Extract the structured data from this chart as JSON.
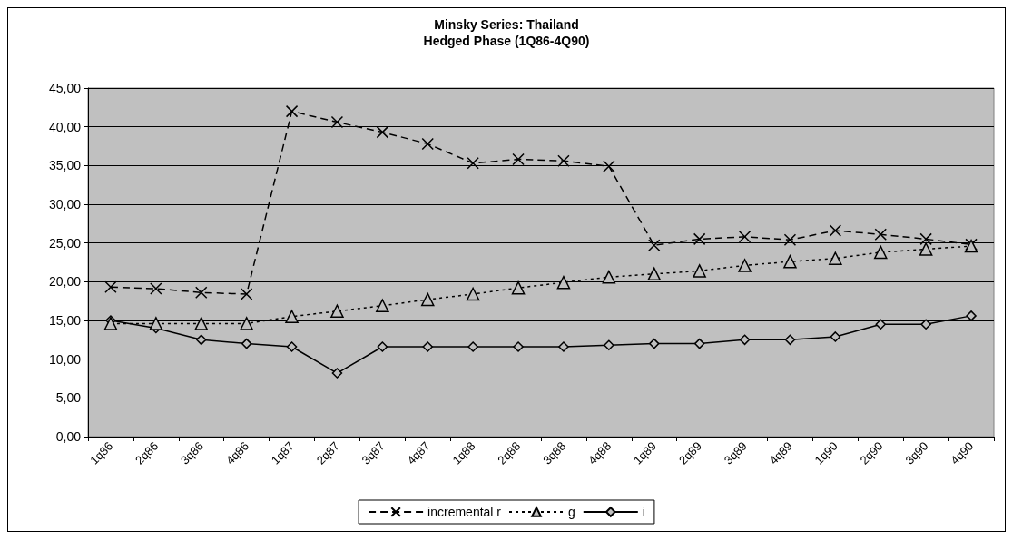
{
  "chart_data": {
    "type": "line",
    "title": "Minsky Series: Thailand",
    "subtitle": "Hedged Phase (1Q86-4Q90)",
    "categories": [
      "1q86",
      "2q86",
      "3q86",
      "4q86",
      "1q87",
      "2q87",
      "3q87",
      "4q87",
      "1q88",
      "2q88",
      "3q88",
      "4q88",
      "1q89",
      "2q89",
      "3q89",
      "4q89",
      "1q90",
      "2q90",
      "3q90",
      "4q90"
    ],
    "series": [
      {
        "name": "incremental r",
        "color": "#000000",
        "marker": "cross",
        "line_style": "dashed",
        "values": [
          19.3,
          19.1,
          18.6,
          18.4,
          42.0,
          40.6,
          39.3,
          37.8,
          35.3,
          35.8,
          35.6,
          34.9,
          24.7,
          25.5,
          25.8,
          25.4,
          26.6,
          26.1,
          25.5,
          24.8
        ]
      },
      {
        "name": "g",
        "color": "#000000",
        "marker": "triangle",
        "line_style": "dotted",
        "values": [
          14.6,
          14.6,
          14.6,
          14.6,
          15.5,
          16.2,
          16.9,
          17.7,
          18.4,
          19.2,
          19.9,
          20.6,
          21.0,
          21.4,
          22.1,
          22.6,
          23.0,
          23.8,
          24.2,
          24.6
        ]
      },
      {
        "name": "i",
        "color": "#000000",
        "marker": "diamond",
        "line_style": "solid",
        "values": [
          15.0,
          14.0,
          12.5,
          12.0,
          11.6,
          8.2,
          11.6,
          11.6,
          11.6,
          11.6,
          11.6,
          11.8,
          12.0,
          12.0,
          12.5,
          12.5,
          12.9,
          14.5,
          14.5,
          15.6
        ]
      }
    ],
    "ylim": [
      0,
      45
    ],
    "yticks": [
      {
        "value": 0,
        "label": "0,00"
      },
      {
        "value": 5,
        "label": "5,00"
      },
      {
        "value": 10,
        "label": "10,00"
      },
      {
        "value": 15,
        "label": "15,00"
      },
      {
        "value": 20,
        "label": "20,00"
      },
      {
        "value": 25,
        "label": "25,00"
      },
      {
        "value": 30,
        "label": "30,00"
      },
      {
        "value": 35,
        "label": "35,00"
      },
      {
        "value": 40,
        "label": "40,00"
      },
      {
        "value": 45,
        "label": "45,00"
      }
    ],
    "grid": "y",
    "legend": "bottom"
  }
}
